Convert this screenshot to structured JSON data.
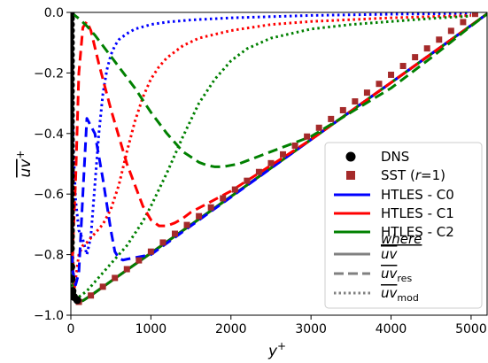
{
  "chart_data": {
    "type": "line",
    "x_axis": {
      "label": "y",
      "label_sup": "+",
      "lim": [
        0,
        5200
      ],
      "ticks": [
        0,
        1000,
        2000,
        3000,
        4000,
        5000
      ],
      "tick_labels": [
        "0",
        "1000",
        "2000",
        "3000",
        "4000",
        "5000"
      ]
    },
    "y_axis": {
      "label_overlined": "uv",
      "label_sup": "+",
      "lim": [
        -1.0,
        0.0
      ],
      "ticks": [
        -1.0,
        -0.8,
        -0.6,
        -0.4,
        -0.2,
        0.0
      ],
      "tick_labels": [
        "−1.0",
        "−0.8",
        "−0.6",
        "−0.4",
        "−0.2",
        "0.0"
      ]
    },
    "grid": false,
    "legend_position": "lower-right",
    "colors": {
      "dns": "#000000",
      "sst": "#a52a2a",
      "c0": "#0000ff",
      "c1": "#ff0000",
      "c2": "#008000",
      "style_key": "#808080"
    },
    "legend": {
      "dns": "DNS",
      "sst_prefix": "SST (",
      "sst_italic": "r",
      "sst_suffix": "=1)",
      "c0": "HTLES - C0",
      "c1": "HTLES - C1",
      "c2": "HTLES - C2",
      "where": "where",
      "total_base": "uv",
      "res_base": "uv",
      "res_sub": "res",
      "mod_base": "uv",
      "mod_sub": "mod"
    },
    "series": [
      {
        "name": "DNS",
        "kind": "markers",
        "color_key": "dns",
        "x": [
          0,
          0,
          0,
          0,
          0,
          0,
          0,
          0,
          0,
          0,
          0,
          0,
          0,
          0,
          0,
          0,
          0,
          0,
          0,
          0,
          0,
          0,
          0,
          0,
          0,
          0,
          0,
          0,
          0,
          0,
          0,
          0,
          0,
          0,
          0,
          0,
          0,
          0,
          0,
          0,
          5,
          10,
          20,
          40,
          80
        ],
        "y": [
          0.0,
          -0.02,
          -0.04,
          -0.06,
          -0.08,
          -0.1,
          -0.12,
          -0.14,
          -0.16,
          -0.18,
          -0.2,
          -0.22,
          -0.24,
          -0.26,
          -0.28,
          -0.3,
          -0.32,
          -0.34,
          -0.36,
          -0.38,
          -0.4,
          -0.42,
          -0.44,
          -0.46,
          -0.48,
          -0.5,
          -0.52,
          -0.54,
          -0.56,
          -0.58,
          -0.6,
          -0.62,
          -0.64,
          -0.66,
          -0.68,
          -0.7,
          -0.72,
          -0.74,
          -0.76,
          -0.78,
          -0.84,
          -0.88,
          -0.92,
          -0.94,
          -0.95
        ]
      },
      {
        "name": "SST (r=1)",
        "kind": "markers",
        "color_key": "sst",
        "x": [
          100,
          250,
          400,
          550,
          700,
          850,
          1000,
          1150,
          1300,
          1450,
          1600,
          1750,
          1900,
          2050,
          2200,
          2350,
          2500,
          2650,
          2800,
          2950,
          3100,
          3250,
          3400,
          3550,
          3700,
          3850,
          4000,
          4150,
          4300,
          4450,
          4600,
          4750,
          4900,
          5050
        ],
        "y": [
          -0.956,
          -0.935,
          -0.906,
          -0.877,
          -0.848,
          -0.819,
          -0.79,
          -0.76,
          -0.731,
          -0.702,
          -0.673,
          -0.644,
          -0.614,
          -0.585,
          -0.556,
          -0.527,
          -0.498,
          -0.469,
          -0.44,
          -0.41,
          -0.381,
          -0.352,
          -0.323,
          -0.294,
          -0.265,
          -0.236,
          -0.206,
          -0.177,
          -0.148,
          -0.119,
          -0.09,
          -0.061,
          -0.032,
          -0.005
        ]
      },
      {
        "name": "HTLES - C0",
        "style": "total",
        "color_key": "c0",
        "x": [
          0,
          10,
          30,
          60,
          100,
          150,
          250,
          500,
          1000,
          2000,
          3000,
          4000,
          5000,
          5200
        ],
        "y": [
          0.0,
          -0.7,
          -0.9,
          -0.945,
          -0.955,
          -0.952,
          -0.935,
          -0.888,
          -0.795,
          -0.608,
          -0.42,
          -0.232,
          -0.043,
          -0.005
        ]
      },
      {
        "name": "HTLES - C0 resolved",
        "style": "res",
        "color_key": "c0",
        "x": [
          0,
          5,
          20,
          60,
          100,
          150,
          200,
          300,
          400,
          500,
          550,
          600,
          650,
          700,
          800,
          1000,
          2000,
          3000,
          4000,
          5000,
          5200
        ],
        "y": [
          0.0,
          -0.45,
          -0.85,
          -0.9,
          -0.86,
          -0.6,
          -0.35,
          -0.4,
          -0.55,
          -0.72,
          -0.79,
          -0.812,
          -0.818,
          -0.815,
          -0.81,
          -0.8,
          -0.61,
          -0.42,
          -0.232,
          -0.043,
          -0.005
        ]
      },
      {
        "name": "HTLES - C0 modelled",
        "style": "mod",
        "color_key": "c0",
        "x": [
          0,
          10,
          20,
          40,
          60,
          100,
          150,
          200,
          250,
          300,
          350,
          400,
          450,
          500,
          550,
          600,
          700,
          800,
          1000,
          1200,
          1500,
          2000,
          3000,
          4000,
          5000
        ],
        "y": [
          0.0,
          -0.15,
          -0.35,
          -0.5,
          -0.62,
          -0.72,
          -0.75,
          -0.8,
          -0.74,
          -0.57,
          -0.4,
          -0.27,
          -0.19,
          -0.14,
          -0.11,
          -0.09,
          -0.07,
          -0.055,
          -0.04,
          -0.032,
          -0.025,
          -0.018,
          -0.01,
          -0.006,
          -0.003
        ]
      },
      {
        "name": "HTLES - C1",
        "style": "total",
        "color_key": "c1",
        "x": [
          0,
          10,
          30,
          60,
          100,
          150,
          250,
          500,
          1000,
          2000,
          3000,
          4000,
          5000,
          5200
        ],
        "y": [
          0.0,
          -0.7,
          -0.9,
          -0.945,
          -0.955,
          -0.952,
          -0.935,
          -0.888,
          -0.795,
          -0.608,
          -0.42,
          -0.232,
          -0.043,
          -0.005
        ]
      },
      {
        "name": "HTLES - C1 resolved",
        "style": "res",
        "color_key": "c1",
        "x": [
          0,
          5,
          20,
          60,
          100,
          150,
          200,
          250,
          350,
          500,
          700,
          900,
          1000,
          1100,
          1200,
          1300,
          1400,
          1500,
          2000,
          3000,
          4000,
          5000,
          5200
        ],
        "y": [
          0.0,
          -0.4,
          -0.8,
          -0.55,
          -0.2,
          -0.05,
          -0.03,
          -0.06,
          -0.17,
          -0.32,
          -0.5,
          -0.64,
          -0.685,
          -0.705,
          -0.705,
          -0.695,
          -0.68,
          -0.66,
          -0.59,
          -0.42,
          -0.232,
          -0.043,
          -0.005
        ]
      },
      {
        "name": "HTLES - C1 modelled",
        "style": "mod",
        "color_key": "c1",
        "x": [
          0,
          5,
          10,
          20,
          40,
          60,
          100,
          150,
          200,
          300,
          400,
          500,
          600,
          700,
          800,
          900,
          1000,
          1100,
          1200,
          1400,
          1600,
          2000,
          2500,
          3000,
          4000,
          5000
        ],
        "y": [
          0.0,
          -0.2,
          -0.45,
          -0.75,
          -0.92,
          -0.88,
          -0.8,
          -0.77,
          -0.76,
          -0.73,
          -0.7,
          -0.65,
          -0.57,
          -0.46,
          -0.36,
          -0.28,
          -0.22,
          -0.18,
          -0.15,
          -0.11,
          -0.085,
          -0.06,
          -0.04,
          -0.03,
          -0.018,
          -0.01
        ]
      },
      {
        "name": "HTLES - C2",
        "style": "total",
        "color_key": "c2",
        "x": [
          0,
          10,
          30,
          60,
          100,
          150,
          250,
          500,
          1000,
          2000,
          3000,
          4000,
          5000,
          5200
        ],
        "y": [
          0.0,
          -0.7,
          -0.9,
          -0.945,
          -0.955,
          -0.952,
          -0.935,
          -0.888,
          -0.795,
          -0.608,
          -0.42,
          -0.232,
          -0.043,
          -0.005
        ]
      },
      {
        "name": "HTLES - C2 resolved",
        "style": "res",
        "color_key": "c2",
        "x": [
          0,
          100,
          200,
          300,
          400,
          600,
          800,
          1000,
          1200,
          1400,
          1600,
          1700,
          1800,
          1900,
          2000,
          2100,
          2200,
          2400,
          2600,
          3000,
          3500,
          4000,
          4500,
          5000,
          5200
        ],
        "y": [
          0.0,
          -0.02,
          -0.045,
          -0.075,
          -0.11,
          -0.18,
          -0.25,
          -0.33,
          -0.4,
          -0.46,
          -0.495,
          -0.505,
          -0.51,
          -0.51,
          -0.505,
          -0.5,
          -0.49,
          -0.47,
          -0.45,
          -0.41,
          -0.33,
          -0.25,
          -0.15,
          -0.045,
          -0.005
        ]
      },
      {
        "name": "HTLES - C2 modelled",
        "style": "mod",
        "color_key": "c2",
        "x": [
          0,
          20,
          60,
          100,
          200,
          300,
          400,
          500,
          600,
          700,
          800,
          900,
          1000,
          1200,
          1400,
          1600,
          1800,
          2000,
          2200,
          2500,
          3000,
          3500,
          4000,
          4500,
          5000
        ],
        "y": [
          -0.6,
          -0.935,
          -0.95,
          -0.94,
          -0.92,
          -0.89,
          -0.86,
          -0.83,
          -0.8,
          -0.77,
          -0.73,
          -0.69,
          -0.64,
          -0.53,
          -0.41,
          -0.3,
          -0.22,
          -0.16,
          -0.12,
          -0.085,
          -0.055,
          -0.04,
          -0.03,
          -0.02,
          -0.012
        ]
      }
    ]
  }
}
